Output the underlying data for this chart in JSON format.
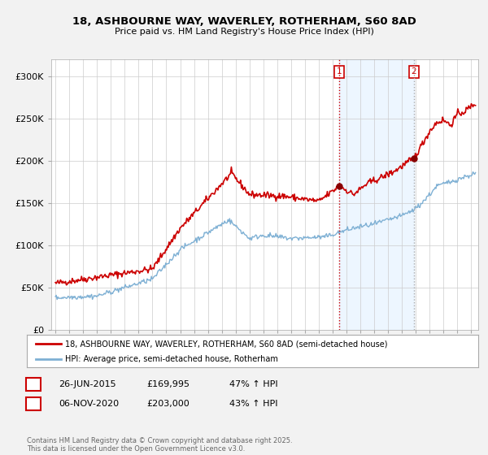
{
  "title_line1": "18, ASHBOURNE WAY, WAVERLEY, ROTHERHAM, S60 8AD",
  "title_line2": "Price paid vs. HM Land Registry's House Price Index (HPI)",
  "background_color": "#f2f2f2",
  "plot_bg_color": "#ffffff",
  "red_color": "#cc0000",
  "blue_color": "#7eb0d4",
  "marker1_x": 2015.49,
  "marker2_x": 2020.85,
  "marker1_label": "26-JUN-2015",
  "marker1_price": 169995,
  "marker1_hpi": "47% ↑ HPI",
  "marker2_label": "06-NOV-2020",
  "marker2_price": 203000,
  "marker2_hpi": "43% ↑ HPI",
  "legend_line1": "18, ASHBOURNE WAY, WAVERLEY, ROTHERHAM, S60 8AD (semi-detached house)",
  "legend_line2": "HPI: Average price, semi-detached house, Rotherham",
  "footer": "Contains HM Land Registry data © Crown copyright and database right 2025.\nThis data is licensed under the Open Government Licence v3.0.",
  "ylim": [
    0,
    320000
  ],
  "yticks": [
    0,
    50000,
    100000,
    150000,
    200000,
    250000,
    300000
  ],
  "ytick_labels": [
    "£0",
    "£50K",
    "£100K",
    "£150K",
    "£200K",
    "£250K",
    "£300K"
  ],
  "xlim_left": 1994.7,
  "xlim_right": 2025.5
}
